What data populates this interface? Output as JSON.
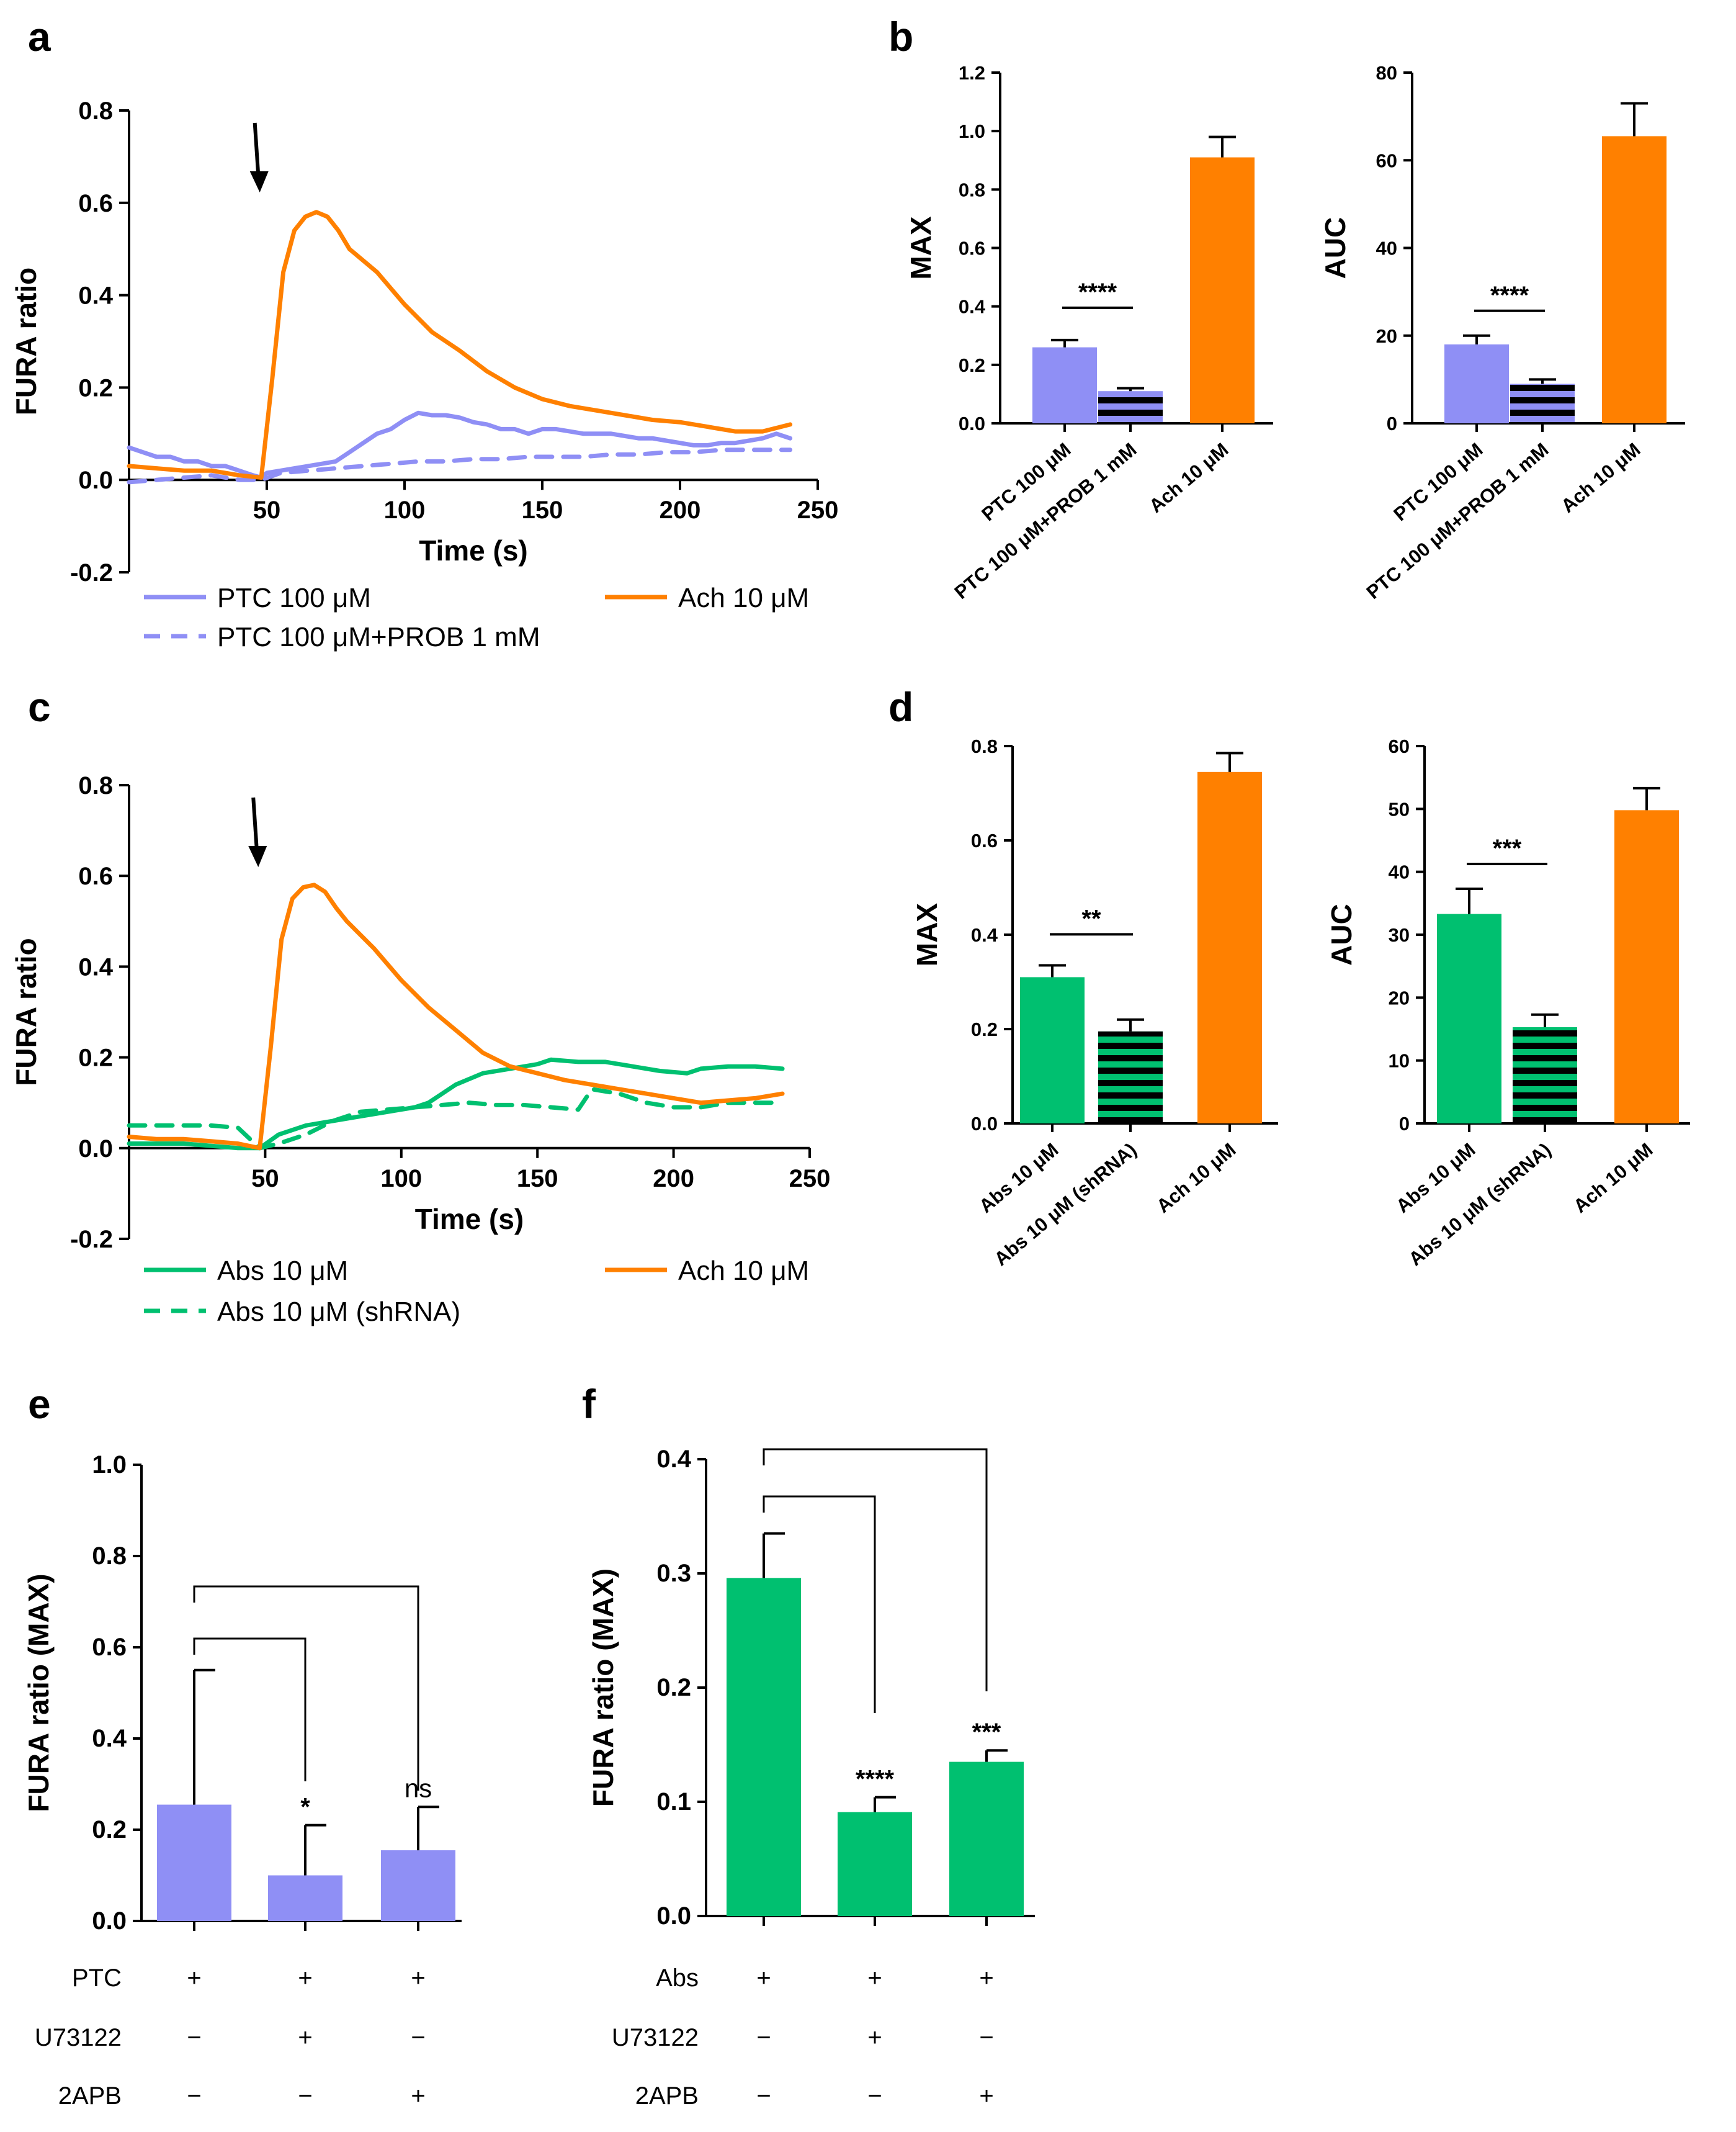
{
  "colors": {
    "ptc": "#8f8ff5",
    "ach": "#ff8000",
    "abs": "#00c070",
    "black": "#000000"
  },
  "chart_data": [
    {
      "panel": "a",
      "type": "line",
      "xlabel": "Time (s)",
      "ylabel": "FURA ratio",
      "xlim": [
        0,
        250
      ],
      "ylim": [
        -0.2,
        0.8
      ],
      "xticks": [
        "50",
        "100",
        "150",
        "200",
        "250"
      ],
      "yticks": [
        "-0.2",
        "0.0",
        "0.2",
        "0.4",
        "0.6",
        "0.8"
      ],
      "arrow_at_time": 47,
      "series": [
        {
          "name": "PTC 100 μM",
          "style": "solid",
          "color_key": "ptc",
          "x": [
            0,
            5,
            10,
            15,
            20,
            25,
            30,
            35,
            40,
            45,
            48,
            50,
            55,
            60,
            65,
            70,
            75,
            80,
            85,
            90,
            95,
            100,
            105,
            110,
            115,
            120,
            125,
            130,
            135,
            140,
            145,
            150,
            155,
            160,
            165,
            170,
            175,
            180,
            185,
            190,
            195,
            200,
            205,
            210,
            215,
            220,
            225,
            230,
            235,
            240
          ],
          "y": [
            0.07,
            0.06,
            0.05,
            0.05,
            0.04,
            0.04,
            0.03,
            0.03,
            0.02,
            0.01,
            0.005,
            0.015,
            0.02,
            0.025,
            0.03,
            0.035,
            0.04,
            0.06,
            0.08,
            0.1,
            0.11,
            0.13,
            0.145,
            0.14,
            0.14,
            0.135,
            0.125,
            0.12,
            0.11,
            0.11,
            0.1,
            0.11,
            0.11,
            0.105,
            0.1,
            0.1,
            0.1,
            0.095,
            0.09,
            0.09,
            0.085,
            0.08,
            0.075,
            0.075,
            0.08,
            0.08,
            0.085,
            0.09,
            0.1,
            0.09
          ]
        },
        {
          "name": "PTC 100 μM+PROB 1 mM",
          "style": "dashed",
          "color_key": "ptc",
          "x": [
            0,
            10,
            20,
            30,
            40,
            48,
            55,
            65,
            75,
            85,
            95,
            105,
            115,
            125,
            135,
            145,
            155,
            165,
            175,
            185,
            195,
            205,
            215,
            225,
            240
          ],
          "y": [
            -0.005,
            0.0,
            0.005,
            0.01,
            0.0,
            0.0,
            0.015,
            0.02,
            0.025,
            0.03,
            0.035,
            0.04,
            0.04,
            0.045,
            0.045,
            0.05,
            0.05,
            0.05,
            0.055,
            0.055,
            0.06,
            0.06,
            0.065,
            0.065,
            0.065
          ]
        },
        {
          "name": "Ach 10 μM",
          "style": "solid",
          "color_key": "ach",
          "x": [
            0,
            10,
            20,
            30,
            40,
            48,
            52,
            56,
            60,
            64,
            68,
            72,
            76,
            80,
            90,
            100,
            110,
            120,
            130,
            140,
            150,
            160,
            170,
            180,
            190,
            200,
            210,
            220,
            230,
            240
          ],
          "y": [
            0.03,
            0.025,
            0.02,
            0.02,
            0.01,
            0.005,
            0.22,
            0.45,
            0.54,
            0.57,
            0.58,
            0.57,
            0.54,
            0.5,
            0.45,
            0.38,
            0.32,
            0.28,
            0.235,
            0.2,
            0.175,
            0.16,
            0.15,
            0.14,
            0.13,
            0.125,
            0.115,
            0.105,
            0.105,
            0.12
          ]
        }
      ],
      "legend": [
        "PTC 100 μM",
        "Ach 10 μM",
        "PTC 100 μM+PROB 1 mM"
      ]
    },
    {
      "panel": "b",
      "type": "bar",
      "sub": [
        {
          "ylabel": "MAX",
          "ylim": [
            0,
            1.2
          ],
          "yticks": [
            "0.0",
            "0.2",
            "0.4",
            "0.6",
            "0.8",
            "1.0",
            "1.2"
          ],
          "categories": [
            "PTC 100 μM",
            "PTC 100 μM+PROB 1 mM",
            "Ach 10 μM"
          ],
          "values": [
            0.26,
            0.11,
            0.91
          ],
          "errors": [
            0.025,
            0.01,
            0.07
          ],
          "significance": "****"
        },
        {
          "ylabel": "AUC",
          "ylim": [
            0,
            80
          ],
          "yticks": [
            "0",
            "20",
            "40",
            "60",
            "80"
          ],
          "categories": [
            "PTC 100 μM",
            "PTC 100 μM+PROB 1 mM",
            "Ach 10 μM"
          ],
          "values": [
            18,
            9,
            65.5
          ],
          "errors": [
            2,
            1,
            7.5
          ],
          "significance": "****"
        }
      ]
    },
    {
      "panel": "c",
      "type": "line",
      "xlabel": "Time (s)",
      "ylabel": "FURA ratio",
      "xlim": [
        0,
        250
      ],
      "ylim": [
        -0.2,
        0.8
      ],
      "xticks": [
        "50",
        "100",
        "150",
        "200",
        "250"
      ],
      "yticks": [
        "-0.2",
        "0.0",
        "0.2",
        "0.4",
        "0.6",
        "0.8"
      ],
      "arrow_at_time": 47,
      "series": [
        {
          "name": "Abs 10 μM",
          "style": "solid",
          "color_key": "abs",
          "x": [
            0,
            10,
            20,
            30,
            40,
            48,
            55,
            65,
            75,
            85,
            95,
            105,
            110,
            115,
            120,
            130,
            140,
            150,
            155,
            165,
            175,
            185,
            195,
            205,
            210,
            220,
            230,
            240
          ],
          "y": [
            0.01,
            0.01,
            0.01,
            0.005,
            0.0,
            0.0,
            0.03,
            0.05,
            0.06,
            0.07,
            0.08,
            0.09,
            0.1,
            0.12,
            0.14,
            0.165,
            0.175,
            0.185,
            0.195,
            0.19,
            0.19,
            0.18,
            0.17,
            0.165,
            0.175,
            0.18,
            0.18,
            0.175
          ]
        },
        {
          "name": "Abs 10 μM (shRNA)",
          "style": "dashed",
          "color_key": "abs",
          "x": [
            0,
            10,
            20,
            30,
            40,
            48,
            55,
            65,
            75,
            85,
            95,
            105,
            115,
            125,
            135,
            145,
            155,
            165,
            170,
            180,
            190,
            200,
            210,
            220,
            230,
            240
          ],
          "y": [
            0.05,
            0.05,
            0.05,
            0.05,
            0.045,
            0.0,
            0.01,
            0.03,
            0.06,
            0.08,
            0.085,
            0.09,
            0.095,
            0.1,
            0.095,
            0.095,
            0.09,
            0.085,
            0.13,
            0.12,
            0.1,
            0.09,
            0.09,
            0.1,
            0.1,
            0.1
          ]
        },
        {
          "name": "Ach 10 μM",
          "style": "solid",
          "color_key": "ach",
          "x": [
            0,
            10,
            20,
            30,
            40,
            48,
            52,
            56,
            60,
            64,
            68,
            72,
            76,
            80,
            90,
            100,
            110,
            120,
            130,
            140,
            150,
            160,
            170,
            180,
            190,
            200,
            210,
            220,
            230,
            240
          ],
          "y": [
            0.025,
            0.02,
            0.02,
            0.015,
            0.01,
            0.0,
            0.22,
            0.46,
            0.55,
            0.575,
            0.58,
            0.565,
            0.53,
            0.5,
            0.44,
            0.37,
            0.31,
            0.26,
            0.21,
            0.18,
            0.165,
            0.15,
            0.14,
            0.13,
            0.12,
            0.11,
            0.1,
            0.105,
            0.11,
            0.12
          ]
        }
      ],
      "legend": [
        "Abs 10 μM",
        "Ach 10 μM",
        "Abs 10 μM (shRNA)"
      ]
    },
    {
      "panel": "d",
      "type": "bar",
      "sub": [
        {
          "ylabel": "MAX",
          "ylim": [
            0,
            0.8
          ],
          "yticks": [
            "0.0",
            "0.2",
            "0.4",
            "0.6",
            "0.8"
          ],
          "categories": [
            "Abs 10 μM",
            "Abs 10 μM (shRNA)",
            "Ach 10 μM"
          ],
          "values": [
            0.31,
            0.195,
            0.745
          ],
          "errors": [
            0.025,
            0.025,
            0.04
          ],
          "significance": "**"
        },
        {
          "ylabel": "AUC",
          "ylim": [
            0,
            60
          ],
          "yticks": [
            "0",
            "10",
            "20",
            "30",
            "40",
            "50",
            "60"
          ],
          "categories": [
            "Abs 10 μM",
            "Abs 10 μM (shRNA)",
            "Ach 10 μM"
          ],
          "values": [
            33.3,
            15.3,
            49.8
          ],
          "errors": [
            4,
            2,
            3.5
          ],
          "significance": "***"
        }
      ]
    },
    {
      "panel": "e",
      "type": "bar",
      "ylabel": "FURA ratio (MAX)",
      "ylim": [
        0,
        1.0
      ],
      "yticks": [
        "0.0",
        "0.2",
        "0.4",
        "0.6",
        "0.8",
        "1.0"
      ],
      "values": [
        0.255,
        0.1,
        0.155
      ],
      "errors": [
        0.295,
        0.11,
        0.095
      ],
      "significance": [
        "",
        "*",
        "ns"
      ],
      "condition_rows": [
        {
          "label": "PTC",
          "signs": [
            "+",
            "+",
            "+"
          ]
        },
        {
          "label": "U73122",
          "signs": [
            "−",
            "+",
            "−"
          ]
        },
        {
          "label": "2APB",
          "signs": [
            "−",
            "−",
            "+"
          ]
        }
      ]
    },
    {
      "panel": "f",
      "type": "bar",
      "ylabel": "FURA ratio (MAX)",
      "ylim": [
        0,
        0.4
      ],
      "yticks": [
        "0.0",
        "0.1",
        "0.2",
        "0.3",
        "0.4"
      ],
      "values": [
        0.296,
        0.091,
        0.135
      ],
      "errors": [
        0.039,
        0.013,
        0.01
      ],
      "significance": [
        "",
        "****",
        "***"
      ],
      "condition_rows": [
        {
          "label": "Abs",
          "signs": [
            "+",
            "+",
            "+"
          ]
        },
        {
          "label": "U73122",
          "signs": [
            "−",
            "+",
            "−"
          ]
        },
        {
          "label": "2APB",
          "signs": [
            "−",
            "−",
            "+"
          ]
        }
      ]
    }
  ]
}
